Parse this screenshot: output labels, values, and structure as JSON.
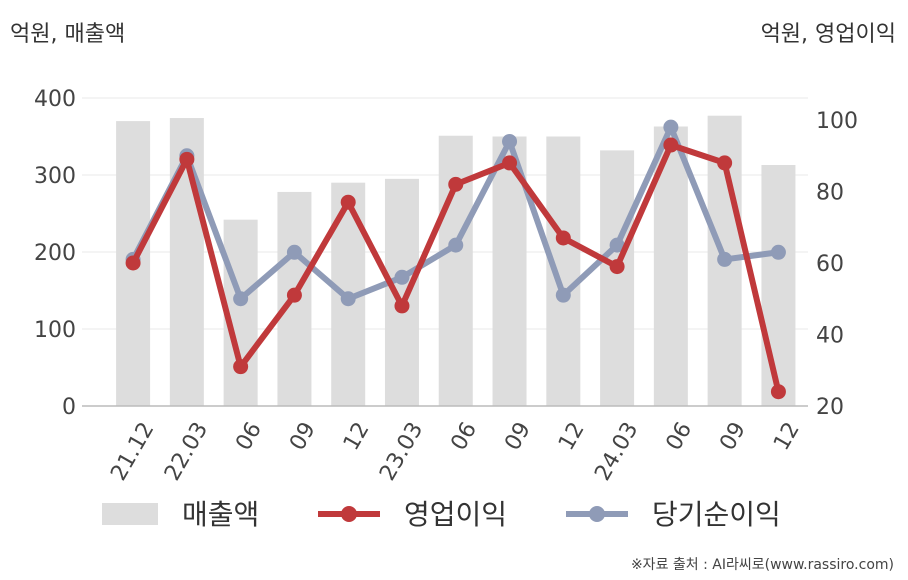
{
  "left_unit": "억원, 매출액",
  "right_unit": "억원, 영업이익",
  "source": "※자료 출처 : AI라씨로(www.rassiro.com)",
  "chart_data": {
    "type": "bar",
    "categories": [
      "21.12",
      "22.03",
      "06",
      "09",
      "12",
      "23.03",
      "06",
      "09",
      "12",
      "24.03",
      "06",
      "09",
      "12"
    ],
    "y_left": {
      "lim": [
        0,
        400
      ],
      "ticks": [
        0,
        100,
        200,
        300,
        400
      ]
    },
    "y_right": {
      "lim": [
        20,
        100
      ],
      "ticks": [
        20,
        40,
        60,
        80,
        100
      ]
    },
    "grid": true,
    "legend_position": "bottom",
    "series": [
      {
        "name": "매출액",
        "type": "bar",
        "axis": "left",
        "color": "#dddddd",
        "values": [
          370,
          374,
          242,
          278,
          290,
          295,
          351,
          350,
          350,
          332,
          363,
          377,
          313
        ]
      },
      {
        "name": "영업이익",
        "type": "line",
        "axis": "right",
        "color": "#c0393b",
        "values": [
          60,
          89,
          31,
          51,
          77,
          48,
          82,
          88,
          67,
          59,
          93,
          88,
          24
        ]
      },
      {
        "name": "당기순이익",
        "type": "line",
        "axis": "right",
        "color": "#8f9bb7",
        "values": [
          61,
          90,
          50,
          63,
          50,
          56,
          65,
          94,
          51,
          65,
          98,
          61,
          63
        ]
      }
    ]
  }
}
